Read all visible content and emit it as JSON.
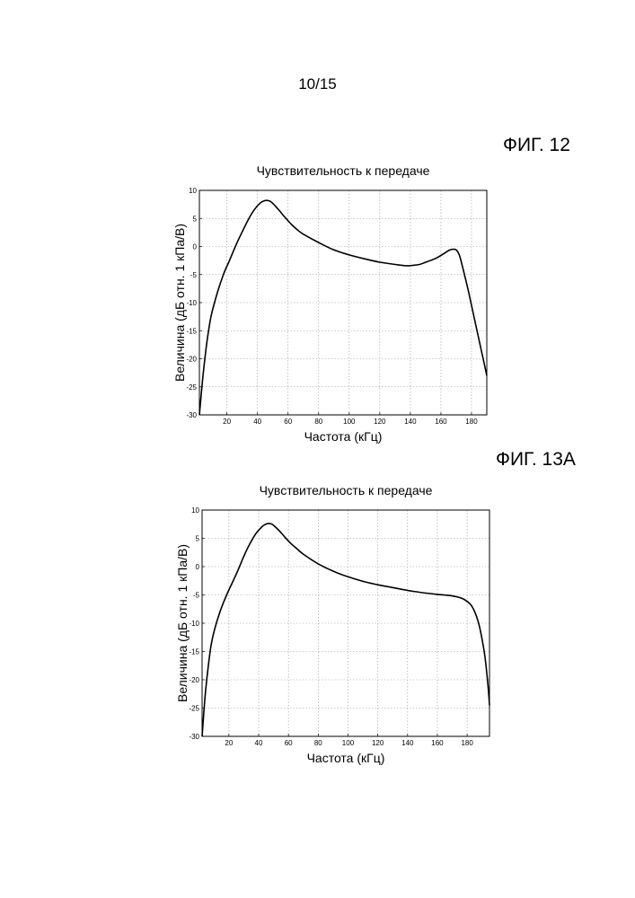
{
  "page_number": "10/15",
  "figures": [
    {
      "label": "ФИГ. 12"
    },
    {
      "label": "ФИГ. 13А"
    }
  ],
  "chart_data": [
    {
      "type": "line",
      "title": "Чувствительность к передаче",
      "xlabel": "Частота (кГц)",
      "ylabel": "Величина (дБ отн. 1 кПа/В)",
      "xlim": [
        2,
        190
      ],
      "ylim": [
        -30,
        10
      ],
      "xticks": [
        20,
        40,
        60,
        80,
        100,
        120,
        140,
        160,
        180
      ],
      "yticks": [
        10,
        5,
        0,
        -5,
        -10,
        -15,
        -20,
        -25,
        -30
      ],
      "grid": true,
      "series": [
        {
          "x": [
            2,
            4,
            6,
            8,
            10,
            14,
            18,
            22,
            26,
            30,
            34,
            38,
            42,
            44,
            46,
            48,
            50,
            54,
            58,
            62,
            66,
            70,
            80,
            90,
            100,
            110,
            120,
            130,
            136,
            140,
            146,
            150,
            156,
            160,
            164,
            166,
            168,
            170,
            172,
            174,
            178,
            182,
            186,
            190
          ],
          "y": [
            -30,
            -24,
            -19,
            -15,
            -12,
            -8,
            -4.8,
            -2.3,
            0.3,
            2.6,
            4.8,
            6.6,
            7.8,
            8.1,
            8.2,
            8.1,
            7.7,
            6.5,
            5.2,
            4.0,
            3.0,
            2.2,
            0.7,
            -0.6,
            -1.5,
            -2.2,
            -2.8,
            -3.2,
            -3.4,
            -3.4,
            -3.2,
            -2.8,
            -2.2,
            -1.6,
            -0.9,
            -0.6,
            -0.5,
            -0.6,
            -1.5,
            -3.5,
            -8,
            -13,
            -18,
            -23
          ]
        }
      ]
    },
    {
      "type": "line",
      "title": "Чувствительность к передаче",
      "xlabel": "Частота (кГц)",
      "ylabel": "Величина (дБ отн. 1 кПа/В)",
      "xlim": [
        2,
        195
      ],
      "ylim": [
        -30,
        10
      ],
      "xticks": [
        20,
        40,
        60,
        80,
        100,
        120,
        140,
        160,
        180
      ],
      "yticks": [
        10,
        5,
        0,
        -5,
        -10,
        -15,
        -20,
        -25,
        -30
      ],
      "grid": true,
      "series": [
        {
          "x": [
            2,
            4,
            6,
            8,
            10,
            14,
            18,
            22,
            26,
            30,
            34,
            38,
            42,
            44,
            46,
            48,
            50,
            54,
            58,
            62,
            66,
            70,
            80,
            90,
            100,
            110,
            120,
            130,
            140,
            150,
            160,
            168,
            174,
            178,
            182,
            184,
            186,
            188,
            190,
            192,
            194,
            195
          ],
          "y": [
            -30,
            -23,
            -18,
            -14,
            -11.5,
            -8,
            -5.3,
            -3,
            -0.7,
            1.8,
            4.0,
            5.8,
            7.0,
            7.4,
            7.6,
            7.6,
            7.3,
            6.3,
            5.1,
            4.0,
            3.1,
            2.2,
            0.5,
            -0.8,
            -1.8,
            -2.6,
            -3.2,
            -3.7,
            -4.2,
            -4.6,
            -4.9,
            -5.1,
            -5.4,
            -5.8,
            -6.6,
            -7.4,
            -8.6,
            -10.3,
            -12.8,
            -16,
            -21,
            -24.5
          ]
        }
      ]
    }
  ]
}
